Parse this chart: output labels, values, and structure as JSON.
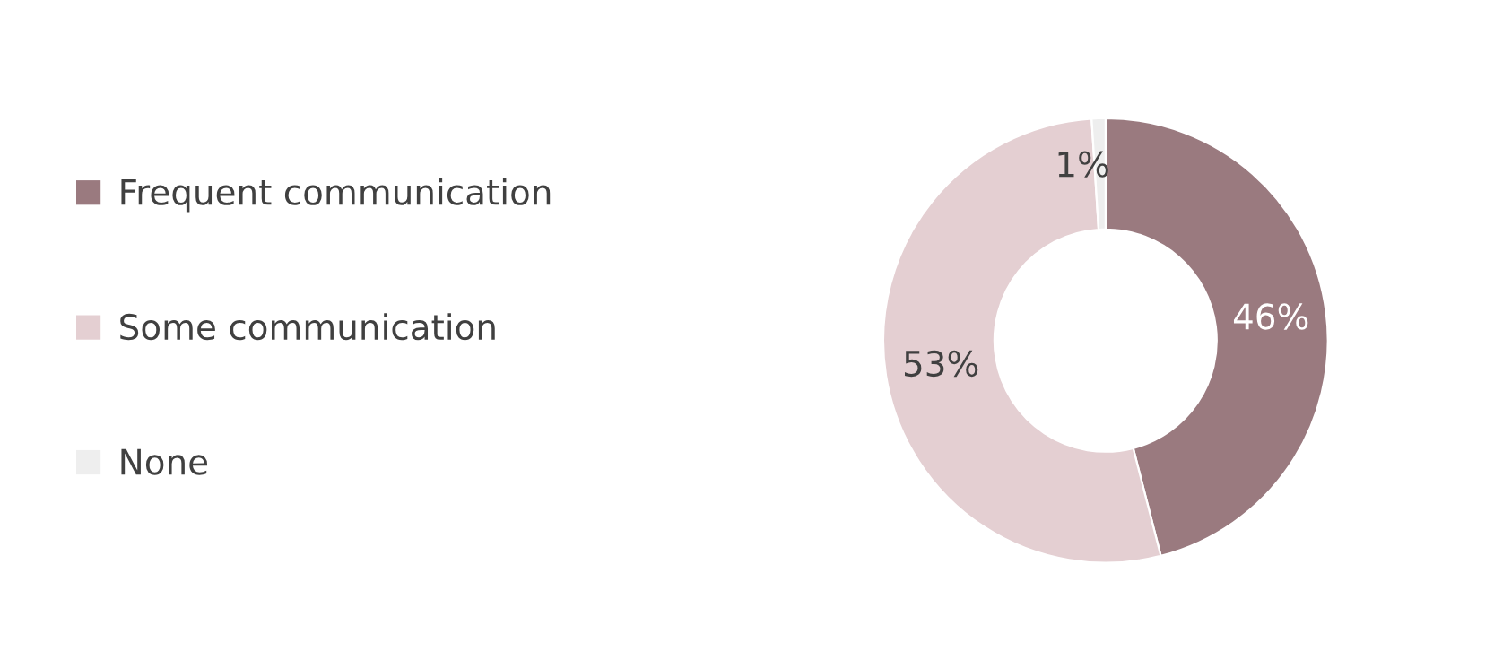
{
  "chart_data": {
    "type": "donut",
    "categories": [
      "Frequent communication",
      "Some communication",
      "None"
    ],
    "values": [
      46,
      53,
      1
    ],
    "colors": [
      "#9a7a7f",
      "#e4cfd2",
      "#eeeeee"
    ],
    "value_labels": [
      "46%",
      "53%",
      "1%"
    ],
    "legend": "left"
  }
}
